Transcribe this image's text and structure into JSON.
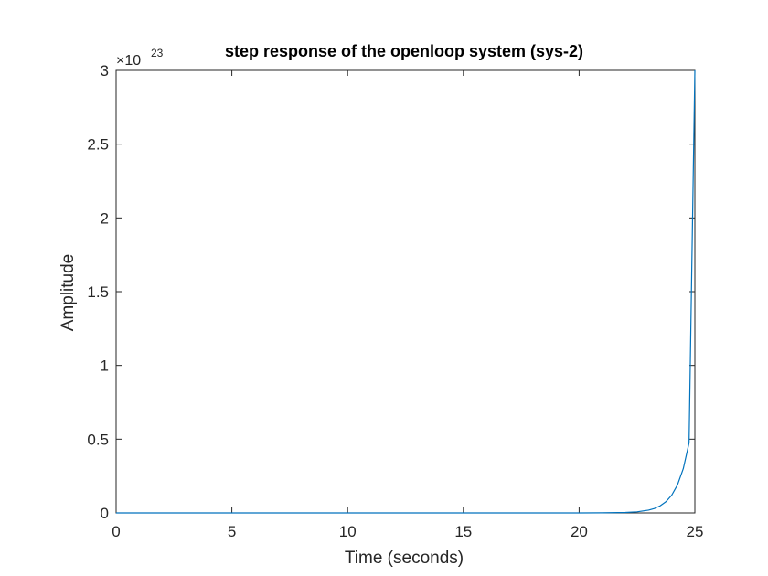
{
  "chart_data": {
    "type": "line",
    "title": "step response of the openloop system (sys-2)",
    "xlabel": "Time (seconds)",
    "ylabel": "Amplitude",
    "xlim": [
      0,
      25
    ],
    "ylim": [
      0,
      3
    ],
    "y_exponent": {
      "base": "×10",
      "power": "23"
    },
    "x_ticks": [
      "0",
      "5",
      "10",
      "15",
      "20",
      "25"
    ],
    "y_ticks": [
      "0",
      "0.5",
      "1",
      "1.5",
      "2",
      "2.5",
      "3"
    ],
    "grid": false,
    "legend": "none",
    "series": [
      {
        "color": "#0072BD",
        "x": [
          0,
          5,
          10,
          15,
          20,
          21,
          22,
          22.5,
          23,
          23.25,
          23.5,
          23.75,
          24,
          24.25,
          24.5,
          24.75,
          25
        ],
        "y": [
          0,
          0,
          0,
          0,
          0,
          0.0006,
          0.003,
          0.0075,
          0.019,
          0.03,
          0.048,
          0.076,
          0.12,
          0.19,
          0.3,
          0.475,
          3
        ]
      }
    ]
  },
  "colors": {
    "axis": "#262626",
    "line": "#0072BD",
    "background": "#ffffff"
  }
}
